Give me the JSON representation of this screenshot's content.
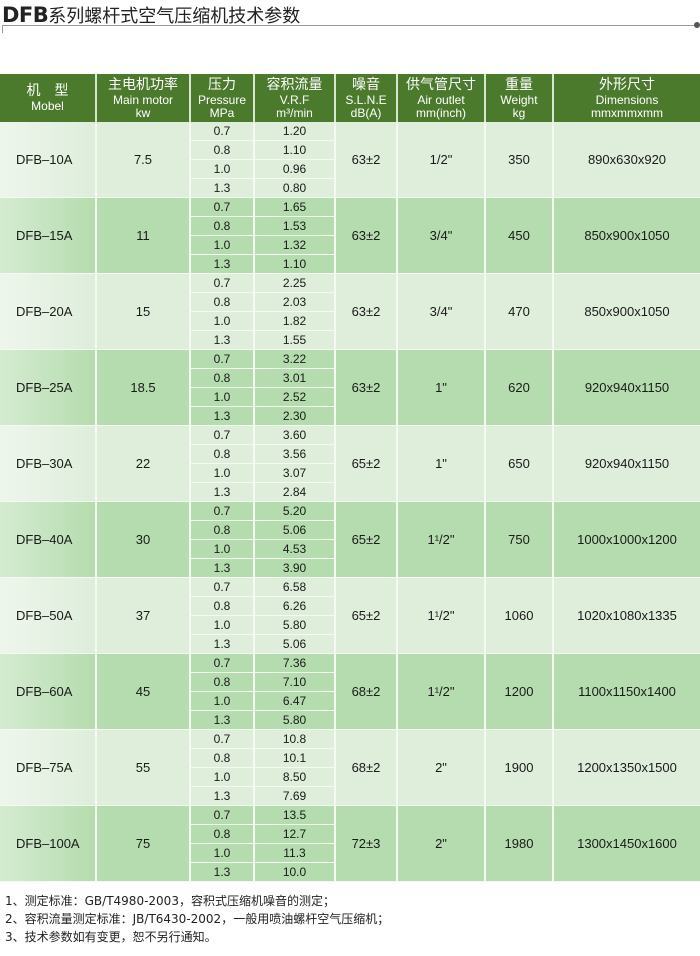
{
  "title": {
    "brand": "DFB",
    "text": "系列螺杆式空气压缩机技术参数"
  },
  "headers": [
    {
      "cn": "机　型",
      "en": "Mobel",
      "unit": ""
    },
    {
      "cn": "主电机功率",
      "en": "Main motor",
      "unit": "kw"
    },
    {
      "cn": "压力",
      "en": "Pressure",
      "unit": "MPa"
    },
    {
      "cn": "容积流量",
      "en": "V.R.F",
      "unit": "m³/min"
    },
    {
      "cn": "噪音",
      "en": "S.L.N.E",
      "unit": "dB(A)"
    },
    {
      "cn": "供气管尺寸",
      "en": "Air outlet",
      "unit": "mm(inch)"
    },
    {
      "cn": "重量",
      "en": "Weight",
      "unit": "kg"
    },
    {
      "cn": "外形尺寸",
      "en": "Dimensions",
      "unit": "mmxmmxmm"
    }
  ],
  "models": [
    {
      "model": "DFB–10A",
      "power": "7.5",
      "pressures": [
        "0.7",
        "0.8",
        "1.0",
        "1.3"
      ],
      "flows": [
        "1.20",
        "1.10",
        "0.96",
        "0.80"
      ],
      "noise": "63±2",
      "outlet": "1/2\"",
      "weight": "350",
      "dims": "890x630x920"
    },
    {
      "model": "DFB–15A",
      "power": "11",
      "pressures": [
        "0.7",
        "0.8",
        "1.0",
        "1.3"
      ],
      "flows": [
        "1.65",
        "1.53",
        "1.32",
        "1.10"
      ],
      "noise": "63±2",
      "outlet": "3/4\"",
      "weight": "450",
      "dims": "850x900x1050"
    },
    {
      "model": "DFB–20A",
      "power": "15",
      "pressures": [
        "0.7",
        "0.8",
        "1.0",
        "1.3"
      ],
      "flows": [
        "2.25",
        "2.03",
        "1.82",
        "1.55"
      ],
      "noise": "63±2",
      "outlet": "3/4\"",
      "weight": "470",
      "dims": "850x900x1050"
    },
    {
      "model": "DFB–25A",
      "power": "18.5",
      "pressures": [
        "0.7",
        "0.8",
        "1.0",
        "1.3"
      ],
      "flows": [
        "3.22",
        "3.01",
        "2.52",
        "2.30"
      ],
      "noise": "63±2",
      "outlet": "1\"",
      "weight": "620",
      "dims": "920x940x1150"
    },
    {
      "model": "DFB–30A",
      "power": "22",
      "pressures": [
        "0.7",
        "0.8",
        "1.0",
        "1.3"
      ],
      "flows": [
        "3.60",
        "3.56",
        "3.07",
        "2.84"
      ],
      "noise": "65±2",
      "outlet": "1\"",
      "weight": "650",
      "dims": "920x940x1150"
    },
    {
      "model": "DFB–40A",
      "power": "30",
      "pressures": [
        "0.7",
        "0.8",
        "1.0",
        "1.3"
      ],
      "flows": [
        "5.20",
        "5.06",
        "4.53",
        "3.90"
      ],
      "noise": "65±2",
      "outlet": "1¹/2\"",
      "weight": "750",
      "dims": "1000x1000x1200"
    },
    {
      "model": "DFB–50A",
      "power": "37",
      "pressures": [
        "0.7",
        "0.8",
        "1.0",
        "1.3"
      ],
      "flows": [
        "6.58",
        "6.26",
        "5.80",
        "5.06"
      ],
      "noise": "65±2",
      "outlet": "1¹/2\"",
      "weight": "1060",
      "dims": "1020x1080x1335"
    },
    {
      "model": "DFB–60A",
      "power": "45",
      "pressures": [
        "0.7",
        "0.8",
        "1.0",
        "1.3"
      ],
      "flows": [
        "7.36",
        "7.10",
        "6.47",
        "5.80"
      ],
      "noise": "68±2",
      "outlet": "1¹/2\"",
      "weight": "1200",
      "dims": "1100x1150x1400"
    },
    {
      "model": "DFB–75A",
      "power": "55",
      "pressures": [
        "0.7",
        "0.8",
        "1.0",
        "1.3"
      ],
      "flows": [
        "10.8",
        "10.1",
        "8.50",
        "7.69"
      ],
      "noise": "68±2",
      "outlet": "2\"",
      "weight": "1900",
      "dims": "1200x1350x1500"
    },
    {
      "model": "DFB–100A",
      "power": "75",
      "pressures": [
        "0.7",
        "0.8",
        "1.0",
        "1.3"
      ],
      "flows": [
        "13.5",
        "12.7",
        "11.3",
        "10.0"
      ],
      "noise": "72±3",
      "outlet": "2\"",
      "weight": "1980",
      "dims": "1300x1450x1600"
    }
  ],
  "notes": [
    "1、测定标准：GB/T4980-2003，容积式压缩机噪音的测定；",
    "2、容积流量测定标准：JB/T6430-2002，一般用喷油螺杆空气压缩机；",
    "3、技术参数如有变更，恕不另行通知。"
  ],
  "colors": {
    "header": "#4b7a2d",
    "row_light": "#deeedb",
    "row_dark": "#b5dcae"
  }
}
